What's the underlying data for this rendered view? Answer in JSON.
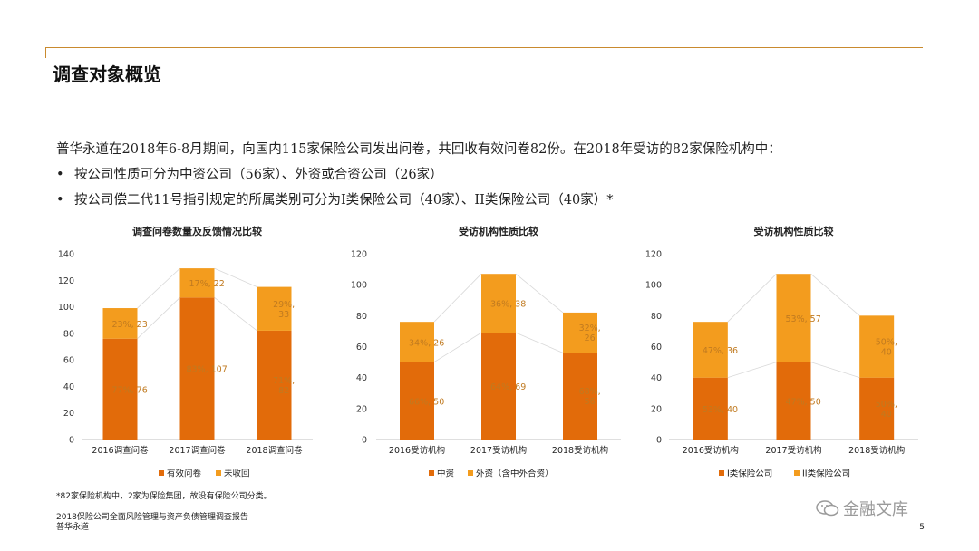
{
  "header": {
    "title": "调查对象概览"
  },
  "intro": "普华永道在2018年6-8月期间，向国内115家保险公司发出问卷，共回收有效问卷82份。在2018年受访的82家保险机构中：",
  "bullets": [
    "按公司性质可分为中资公司（56家）、外资或合资公司（26家）",
    "按公司偿二代11号指引规定的所属类别可分为I类保险公司（40家）、II类保险公司（40家）*"
  ],
  "bullet_symbol": "•",
  "colors": {
    "dark": "#e26b0a",
    "light": "#f39c1e",
    "accent_line": "#c98a2e",
    "label": "#c07a20"
  },
  "chart_data": [
    {
      "type": "bar",
      "stacked": true,
      "title": "调查问卷数量及反馈情况比较",
      "categories": [
        "2016调查问卷",
        "2017调查问卷",
        "2018调查问卷"
      ],
      "ylim": [
        0,
        140
      ],
      "yticks": [
        0,
        20,
        40,
        60,
        80,
        100,
        120,
        140
      ],
      "series": [
        {
          "name": "有效问卷",
          "values": [
            76,
            107,
            82
          ],
          "labels": [
            "77%, 76",
            "83%, 107",
            "71%,\n82"
          ]
        },
        {
          "name": "未收回",
          "values": [
            23,
            22,
            33
          ],
          "labels": [
            "23%, 23",
            "17%, 22",
            "29%,\n33"
          ]
        }
      ],
      "legend": "bottom",
      "grid": false
    },
    {
      "type": "bar",
      "stacked": true,
      "title": "受访机构性质比较",
      "categories": [
        "2016受访机构",
        "2017受访机构",
        "2018受访机构"
      ],
      "ylim": [
        0,
        120
      ],
      "yticks": [
        0,
        20,
        40,
        60,
        80,
        100,
        120
      ],
      "series": [
        {
          "name": "中资",
          "values": [
            50,
            69,
            56
          ],
          "labels": [
            "66%, 50",
            "64%, 69",
            "68%,\n56"
          ]
        },
        {
          "name": "外资（含中外合资）",
          "values": [
            26,
            38,
            26
          ],
          "labels": [
            "34%, 26",
            "36%, 38",
            "32%,\n26"
          ]
        }
      ],
      "legend": "bottom",
      "grid": false
    },
    {
      "type": "bar",
      "stacked": true,
      "title": "受访机构性质比较",
      "categories": [
        "2016受访机构",
        "2017受访机构",
        "2018受访机构"
      ],
      "ylim": [
        0,
        120
      ],
      "yticks": [
        0,
        20,
        40,
        60,
        80,
        100,
        120
      ],
      "series": [
        {
          "name": "I类保险公司",
          "values": [
            40,
            50,
            40
          ],
          "labels": [
            "53%, 40",
            "47%, 50",
            "50%,\n40"
          ]
        },
        {
          "name": "II类保险公司",
          "values": [
            36,
            57,
            40
          ],
          "labels": [
            "47%, 36",
            "53%, 57",
            "50%,\n40"
          ]
        }
      ],
      "legend": "bottom",
      "grid": false
    }
  ],
  "footnote": "*82家保险机构中，2家为保险集团，故没有保险公司分类。",
  "footer": {
    "report": "2018保险公司全面风险管理与资产负债管理调查报告",
    "org": "普华永道"
  },
  "page_number": "5",
  "watermark": {
    "text": "金融文库",
    "icon": "wechat-icon"
  }
}
